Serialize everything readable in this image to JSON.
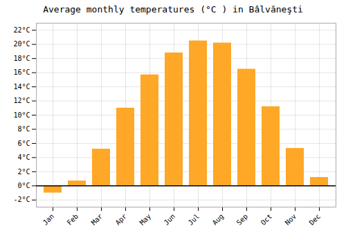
{
  "chart_data": {
    "type": "bar",
    "title": "Average monthly temperatures (°C ) in Bâlvăneşti",
    "categories": [
      "Jan",
      "Feb",
      "Mar",
      "Apr",
      "May",
      "Jun",
      "Jul",
      "Aug",
      "Sep",
      "Oct",
      "Nov",
      "Dec"
    ],
    "values": [
      -1.0,
      0.7,
      5.2,
      11.0,
      15.7,
      18.8,
      20.5,
      20.2,
      16.5,
      11.2,
      5.3,
      1.2
    ],
    "color": "#FFA726",
    "ylim": [
      -3,
      23
    ],
    "yticks": [
      {
        "value": -2,
        "label": "-2°C"
      },
      {
        "value": 0,
        "label": "0°C"
      },
      {
        "value": 2,
        "label": "2°C"
      },
      {
        "value": 4,
        "label": "4°C"
      },
      {
        "value": 6,
        "label": "6°C"
      },
      {
        "value": 8,
        "label": "8°C"
      },
      {
        "value": 10,
        "label": "10°C"
      },
      {
        "value": 12,
        "label": "12°C"
      },
      {
        "value": 14,
        "label": "14°C"
      },
      {
        "value": 16,
        "label": "16°C"
      },
      {
        "value": 18,
        "label": "18°C"
      },
      {
        "value": 20,
        "label": "20°C"
      },
      {
        "value": 22,
        "label": "22°C"
      }
    ],
    "grid": true
  }
}
